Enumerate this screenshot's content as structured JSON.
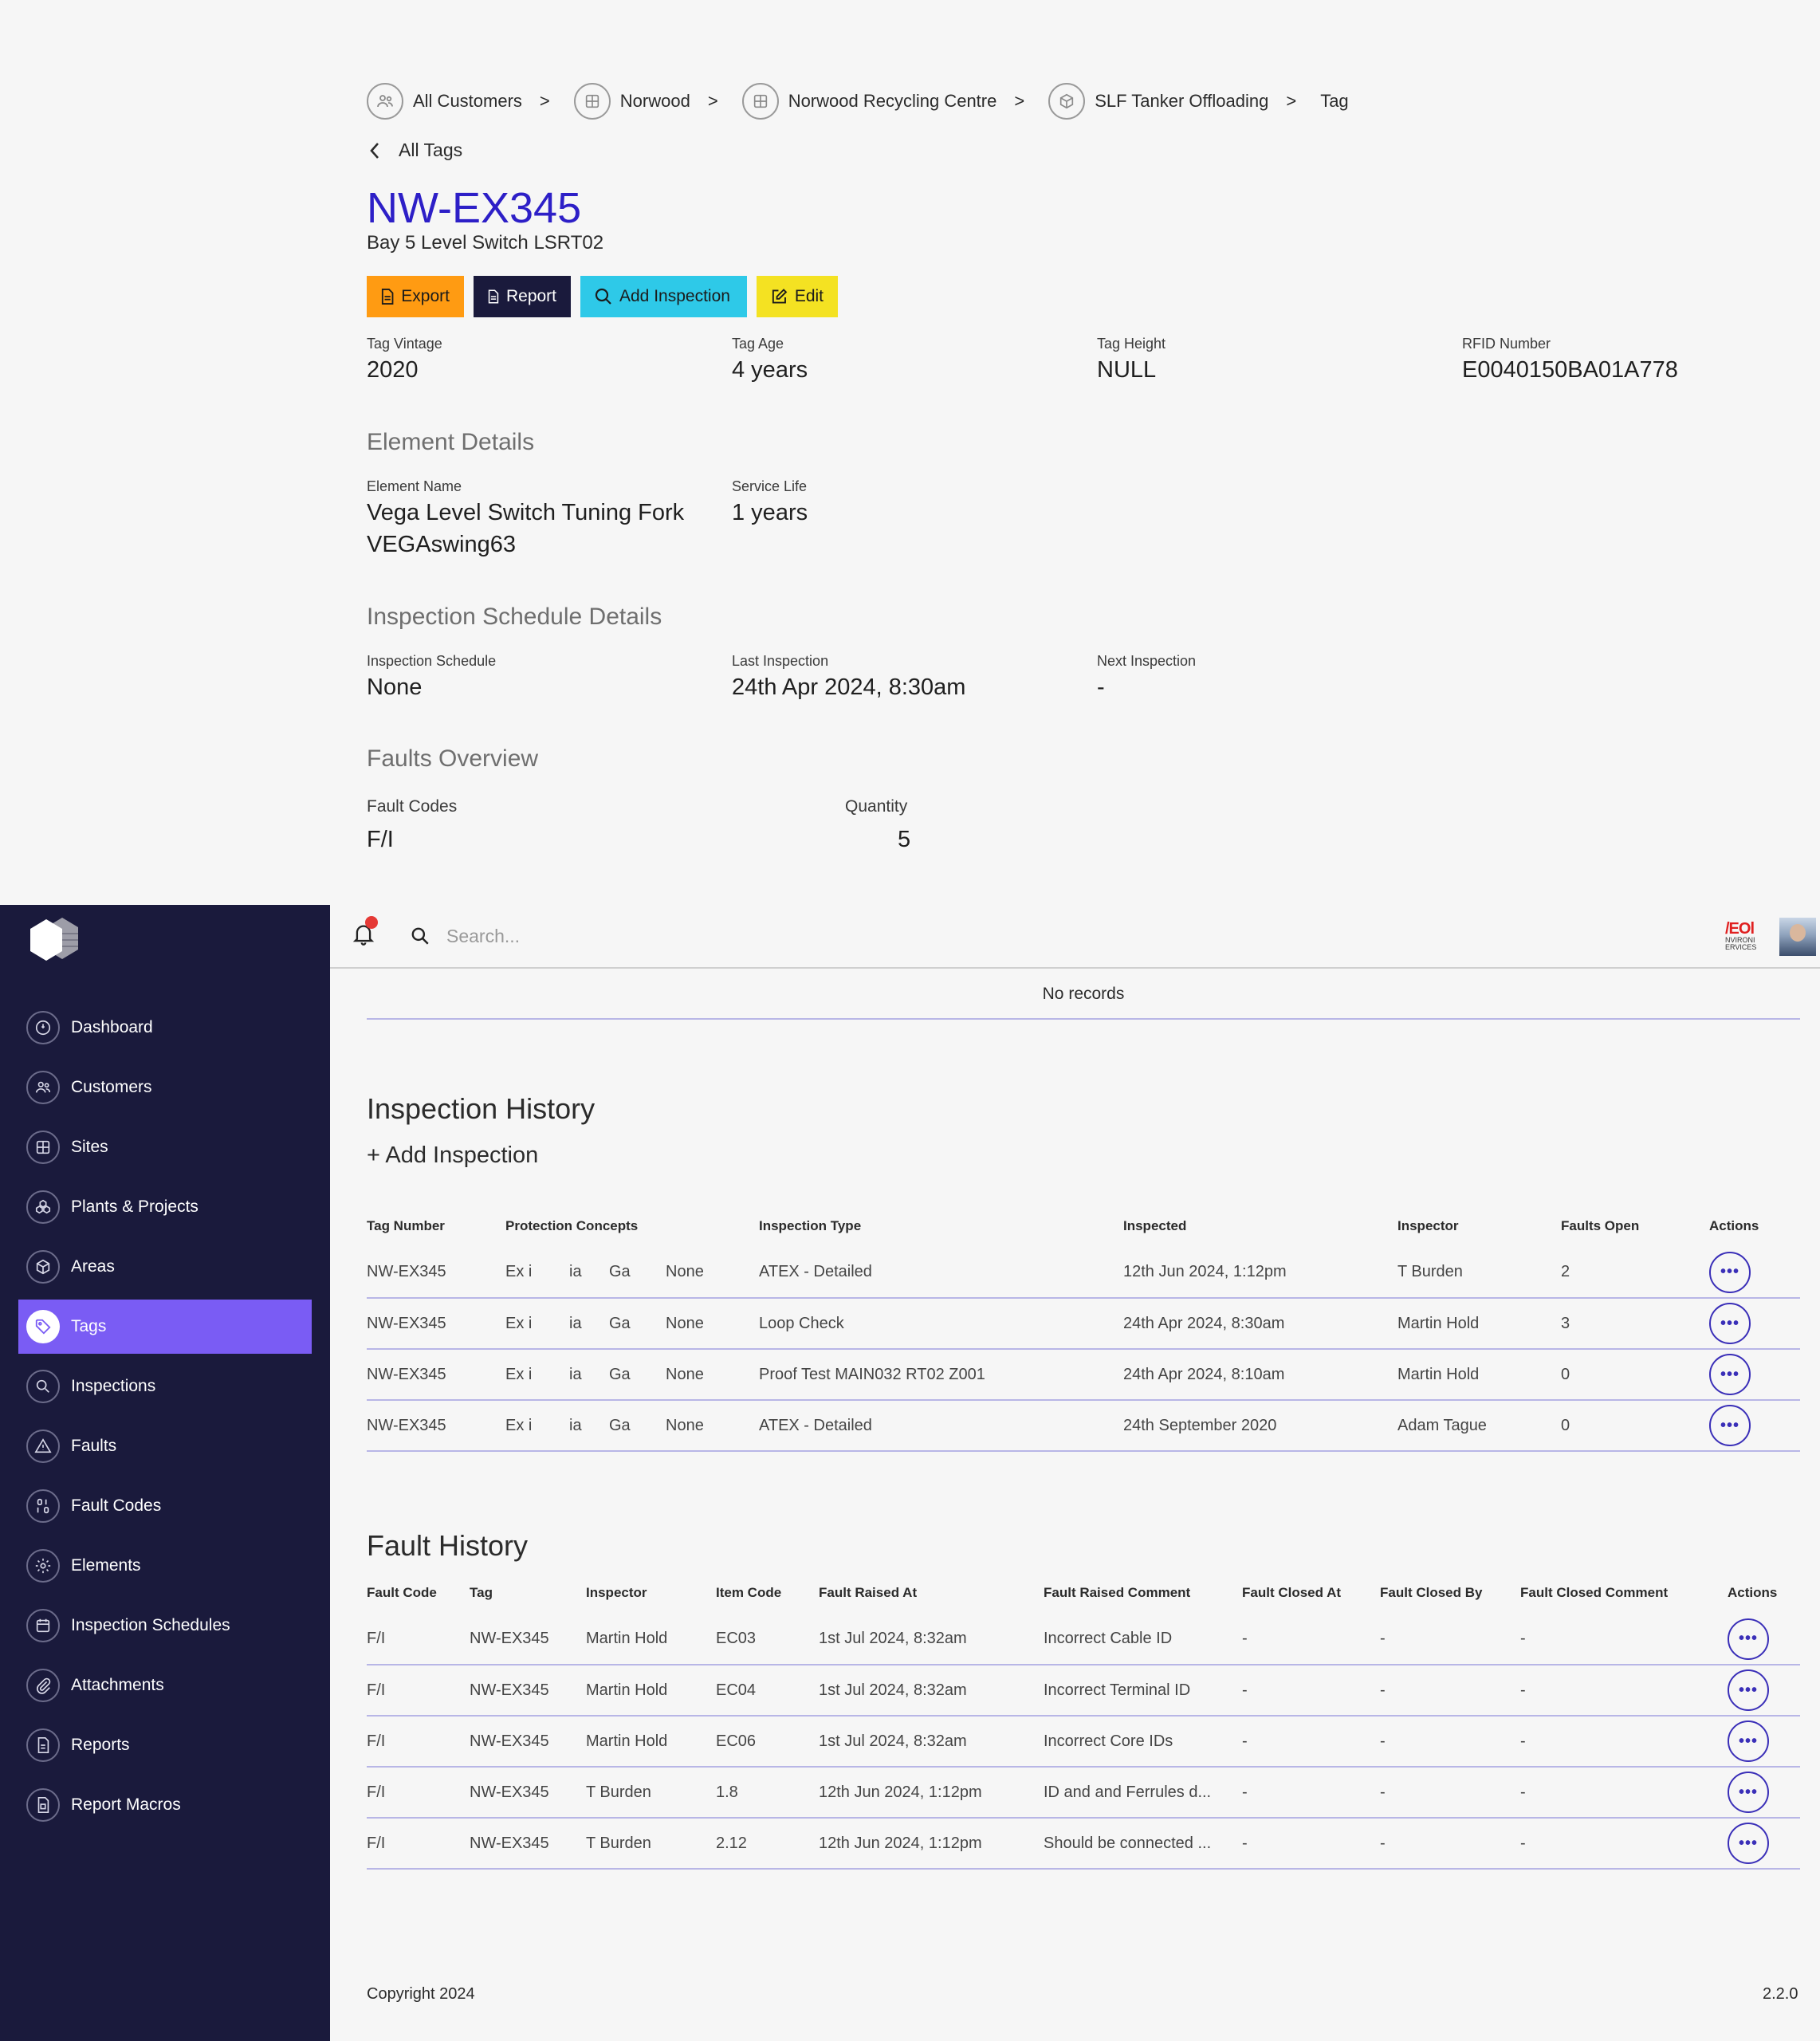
{
  "breadcrumb": [
    {
      "label": "All Customers",
      "icon": "users-icon"
    },
    {
      "label": "Norwood",
      "icon": "grid-icon"
    },
    {
      "label": "Norwood Recycling Centre",
      "icon": "grid-icon"
    },
    {
      "label": "SLF Tanker Offloading",
      "icon": "cube-icon"
    },
    {
      "label": "Tag"
    }
  ],
  "breadcrumb_sep": ">",
  "back_label": "All Tags",
  "tag": {
    "title": "NW-EX345",
    "subtitle": "Bay 5 Level Switch LSRT02"
  },
  "buttons": {
    "export": "Export",
    "report": "Report",
    "add_inspection": "Add Inspection",
    "edit": "Edit"
  },
  "fields": {
    "tag_vintage": {
      "label": "Tag Vintage",
      "value": "2020"
    },
    "tag_age": {
      "label": "Tag Age",
      "value": "4 years"
    },
    "tag_height": {
      "label": "Tag Height",
      "value": "NULL"
    },
    "rfid": {
      "label": "RFID Number",
      "value": "E0040150BA01A778"
    }
  },
  "element_details": {
    "heading": "Element Details",
    "element_name_label": "Element Name",
    "element_name_line1": "Vega Level Switch Tuning Fork",
    "element_name_line2": "VEGAswing63",
    "service_life_label": "Service Life",
    "service_life": "1 years"
  },
  "schedule_details": {
    "heading": "Inspection Schedule Details",
    "schedule_label": "Inspection Schedule",
    "schedule": "None",
    "last_label": "Last Inspection",
    "last": "24th Apr 2024, 8:30am",
    "next_label": "Next Inspection",
    "next": "-"
  },
  "faults_overview": {
    "heading": "Faults Overview",
    "codes_label": "Fault Codes",
    "quantity_label": "Quantity",
    "code": "F/I",
    "quantity": "5"
  },
  "sidebar": {
    "items": [
      {
        "label": "Dashboard",
        "icon": "dashboard-icon"
      },
      {
        "label": "Customers",
        "icon": "users-icon"
      },
      {
        "label": "Sites",
        "icon": "grid-icon"
      },
      {
        "label": "Plants & Projects",
        "icon": "plants-icon"
      },
      {
        "label": "Areas",
        "icon": "cube-icon"
      },
      {
        "label": "Tags",
        "icon": "tag-icon",
        "active": true
      },
      {
        "label": "Inspections",
        "icon": "search-icon"
      },
      {
        "label": "Faults",
        "icon": "warning-icon"
      },
      {
        "label": "Fault Codes",
        "icon": "fault-codes-icon"
      },
      {
        "label": "Elements",
        "icon": "gear-icon"
      },
      {
        "label": "Inspection Schedules",
        "icon": "calendar-icon"
      },
      {
        "label": "Attachments",
        "icon": "paperclip-icon"
      },
      {
        "label": "Reports",
        "icon": "report-icon"
      },
      {
        "label": "Report Macros",
        "icon": "report-macro-icon"
      }
    ]
  },
  "topbar": {
    "search_placeholder": "Search...",
    "brand_line1": "/EOl",
    "brand_line2": "NVIRONI ERVICES"
  },
  "no_records": "No records",
  "inspection_history": {
    "heading": "Inspection History",
    "add_link": "+ Add Inspection",
    "columns": [
      "Tag Number",
      "Protection Concepts",
      "Inspection Type",
      "Inspected",
      "Inspector",
      "Faults Open",
      "Actions"
    ],
    "rows": [
      {
        "tag": "NW-EX345",
        "pc": [
          "Ex i",
          "ia",
          "Ga",
          "None"
        ],
        "type": "ATEX - Detailed",
        "inspected": "12th Jun 2024, 1:12pm",
        "inspector": "T Burden",
        "faults": "2"
      },
      {
        "tag": "NW-EX345",
        "pc": [
          "Ex i",
          "ia",
          "Ga",
          "None"
        ],
        "type": "Loop Check",
        "inspected": "24th Apr 2024, 8:30am",
        "inspector": "Martin Hold",
        "faults": "3"
      },
      {
        "tag": "NW-EX345",
        "pc": [
          "Ex i",
          "ia",
          "Ga",
          "None"
        ],
        "type": "Proof Test MAIN032 RT02 Z001",
        "inspected": "24th Apr 2024, 8:10am",
        "inspector": "Martin Hold",
        "faults": "0"
      },
      {
        "tag": "NW-EX345",
        "pc": [
          "Ex i",
          "ia",
          "Ga",
          "None"
        ],
        "type": "ATEX - Detailed",
        "inspected": "24th September 2020",
        "inspector": "Adam Tague",
        "faults": "0"
      }
    ]
  },
  "fault_history": {
    "heading": "Fault History",
    "columns": [
      "Fault Code",
      "Tag",
      "Inspector",
      "Item Code",
      "Fault Raised At",
      "Fault Raised Comment",
      "Fault Closed At",
      "Fault Closed By",
      "Fault Closed Comment",
      "Actions"
    ],
    "rows": [
      {
        "code": "F/I",
        "tag": "NW-EX345",
        "inspector": "Martin Hold",
        "item": "EC03",
        "raised": "1st Jul 2024, 8:32am",
        "comment": "Incorrect Cable ID",
        "closed_at": "-",
        "closed_by": "-",
        "closed_comment": "-"
      },
      {
        "code": "F/I",
        "tag": "NW-EX345",
        "inspector": "Martin Hold",
        "item": "EC04",
        "raised": "1st Jul 2024, 8:32am",
        "comment": "Incorrect Terminal ID",
        "closed_at": "-",
        "closed_by": "-",
        "closed_comment": "-"
      },
      {
        "code": "F/I",
        "tag": "NW-EX345",
        "inspector": "Martin Hold",
        "item": "EC06",
        "raised": "1st Jul 2024, 8:32am",
        "comment": "Incorrect Core IDs",
        "closed_at": "-",
        "closed_by": "-",
        "closed_comment": "-"
      },
      {
        "code": "F/I",
        "tag": "NW-EX345",
        "inspector": "T Burden",
        "item": "1.8",
        "raised": "12th Jun 2024, 1:12pm",
        "comment": "ID and and Ferrules d...",
        "closed_at": "-",
        "closed_by": "-",
        "closed_comment": "-"
      },
      {
        "code": "F/I",
        "tag": "NW-EX345",
        "inspector": "T Burden",
        "item": "2.12",
        "raised": "12th Jun 2024, 1:12pm",
        "comment": "Should be connected ...",
        "closed_at": "-",
        "closed_by": "-",
        "closed_comment": "-"
      }
    ]
  },
  "actions_glyph": "•••",
  "footer": {
    "copyright": "Copyright 2024",
    "version": "2.2.0"
  },
  "colors": {
    "title": "#2d1fc7",
    "sidebar_bg": "#1a1a3c",
    "sidebar_active": "#7a5cf4",
    "export": "#ff9b12",
    "report": "#1a1a3c",
    "add_inspection": "#2ec9e8",
    "edit": "#f4e222",
    "row_border": "#b8b6e6",
    "notification_dot": "#e53935"
  }
}
